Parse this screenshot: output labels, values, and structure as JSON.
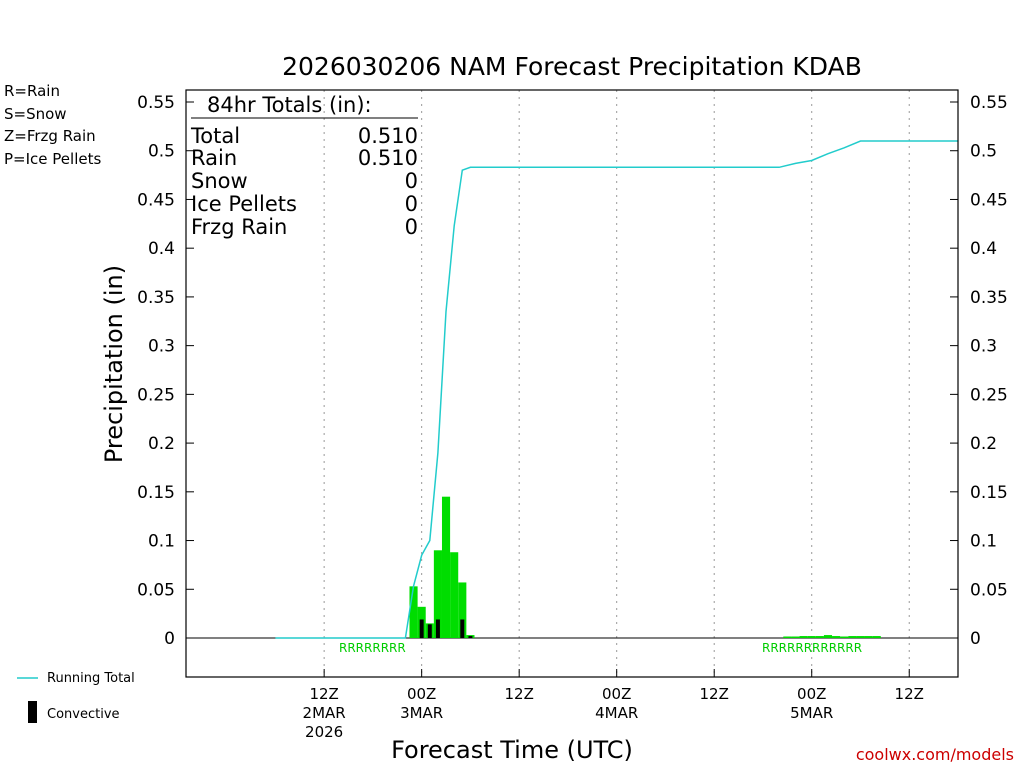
{
  "chart_data": {
    "type": "bar",
    "title": "2026030206 NAM Forecast Precipitation KDAB",
    "xlabel": "Forecast Time (UTC)",
    "ylabel": "Precipitation (in)",
    "ylim": [
      -0.04,
      0.56
    ],
    "yticks": [
      "0.55",
      "0.5",
      "0.45",
      "0.4",
      "0.35",
      "0.3",
      "0.25",
      "0.2",
      "0.15",
      "0.1",
      "0.05",
      "0"
    ],
    "xlim_hours": [
      -11,
      84
    ],
    "xticks": [
      {
        "hour": 6,
        "lines": [
          "12Z",
          "2MAR",
          "2026"
        ]
      },
      {
        "hour": 18,
        "lines": [
          "00Z",
          "3MAR"
        ]
      },
      {
        "hour": 30,
        "lines": [
          "12Z"
        ]
      },
      {
        "hour": 42,
        "lines": [
          "00Z",
          "4MAR"
        ]
      },
      {
        "hour": 54,
        "lines": [
          "12Z"
        ]
      },
      {
        "hour": 66,
        "lines": [
          "00Z",
          "5MAR"
        ]
      },
      {
        "hour": 78,
        "lines": [
          "12Z"
        ]
      }
    ],
    "totals": {
      "heading": "84hr Totals (in):",
      "rows": [
        {
          "label": "Total",
          "value": "0.510"
        },
        {
          "label": "Rain",
          "value": "0.510"
        },
        {
          "label": "Snow",
          "value": "0"
        },
        {
          "label": "Ice Pellets",
          "value": "0"
        },
        {
          "label": "Frzg Rain",
          "value": "0"
        }
      ]
    },
    "precip_type_legend": [
      {
        "text": "R=Rain",
        "color": "#00dd00"
      },
      {
        "text": "S=Snow",
        "color": "#3355ff"
      },
      {
        "text": "Z=Frzg Rain",
        "color": "#ff9933"
      },
      {
        "text": "P=Ice Pellets",
        "color": "#ee1188"
      }
    ],
    "series_legend": {
      "running_total": "Running Total",
      "convective": "Convective"
    },
    "rain_bars": [
      {
        "hour": 17,
        "value": 0.053,
        "type": "R"
      },
      {
        "hour": 18,
        "value": 0.032,
        "type": "R"
      },
      {
        "hour": 19,
        "value": 0.015,
        "type": "R"
      },
      {
        "hour": 20,
        "value": 0.09,
        "type": "R"
      },
      {
        "hour": 21,
        "value": 0.145,
        "type": "R"
      },
      {
        "hour": 22,
        "value": 0.088,
        "type": "R"
      },
      {
        "hour": 23,
        "value": 0.057,
        "type": "R"
      },
      {
        "hour": 24,
        "value": 0.003,
        "type": "R"
      },
      {
        "hour": 63,
        "value": 0.001,
        "type": "R"
      },
      {
        "hour": 64,
        "value": 0.001,
        "type": "R"
      },
      {
        "hour": 65,
        "value": 0.002,
        "type": "R"
      },
      {
        "hour": 66,
        "value": 0.002,
        "type": "R"
      },
      {
        "hour": 67,
        "value": 0.002,
        "type": "R"
      },
      {
        "hour": 68,
        "value": 0.003,
        "type": "R"
      },
      {
        "hour": 69,
        "value": 0.002,
        "type": "R"
      },
      {
        "hour": 70,
        "value": 0.001,
        "type": "R"
      },
      {
        "hour": 71,
        "value": 0.002,
        "type": "R"
      },
      {
        "hour": 72,
        "value": 0.002,
        "type": "R"
      },
      {
        "hour": 73,
        "value": 0.002,
        "type": "R"
      },
      {
        "hour": 74,
        "value": 0.002,
        "type": "R"
      }
    ],
    "convective_bars": [
      {
        "hour": 18,
        "value": 0.019
      },
      {
        "hour": 19,
        "value": 0.014
      },
      {
        "hour": 20,
        "value": 0.019
      },
      {
        "hour": 23,
        "value": 0.019
      },
      {
        "hour": 24,
        "value": 0.002
      }
    ],
    "running_total": {
      "hours": [
        0,
        16,
        17,
        18,
        19,
        20,
        21,
        22,
        23,
        24,
        62,
        64,
        66,
        68,
        70,
        72,
        84
      ],
      "values": [
        0,
        0,
        0.053,
        0.085,
        0.1,
        0.19,
        0.335,
        0.423,
        0.48,
        0.483,
        0.483,
        0.487,
        0.49,
        0.497,
        0.503,
        0.51,
        0.51
      ]
    },
    "type_strip": "RRRRRRRR RRRRRRRRRRRR"
  },
  "credit": "coolwx.com/models"
}
